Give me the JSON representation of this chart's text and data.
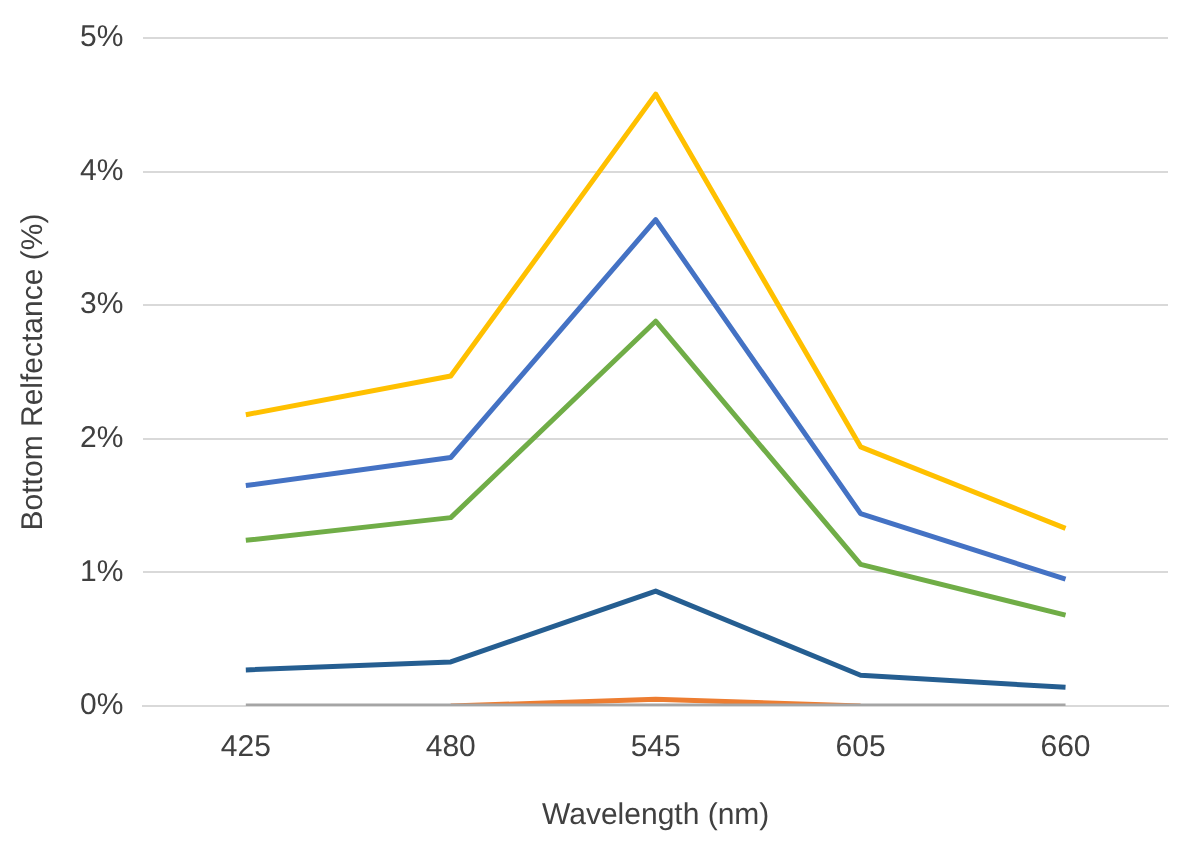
{
  "chart_data": {
    "type": "line",
    "xlabel": "Wavelength (nm)",
    "ylabel": "Bottom Relfectance (%)",
    "categories": [
      "425",
      "480",
      "545",
      "605",
      "660"
    ],
    "series": [
      {
        "color": "#ffc000",
        "values": [
          2.18,
          2.47,
          4.58,
          1.94,
          1.33
        ]
      },
      {
        "color": "#4472c4",
        "values": [
          1.65,
          1.86,
          3.64,
          1.44,
          0.95
        ]
      },
      {
        "color": "#70ad47",
        "values": [
          1.24,
          1.41,
          2.88,
          1.06,
          0.68
        ]
      },
      {
        "color": "#255e91",
        "values": [
          0.27,
          0.33,
          0.86,
          0.23,
          0.14
        ]
      },
      {
        "color": "#ed7d31",
        "values": [
          null,
          0,
          0.05,
          0,
          null
        ]
      },
      {
        "color": "#a5a5a5",
        "values": [
          0,
          0,
          0,
          0,
          0
        ]
      }
    ],
    "ylim": [
      0,
      5
    ],
    "yticks": [
      {
        "value": 0,
        "label": "0%"
      },
      {
        "value": 1,
        "label": "1%"
      },
      {
        "value": 2,
        "label": "2%"
      },
      {
        "value": 3,
        "label": "3%"
      },
      {
        "value": 4,
        "label": "4%"
      },
      {
        "value": 5,
        "label": "5%"
      }
    ],
    "grid": "y",
    "legend": false,
    "marker": "none",
    "line_style": "solid"
  }
}
